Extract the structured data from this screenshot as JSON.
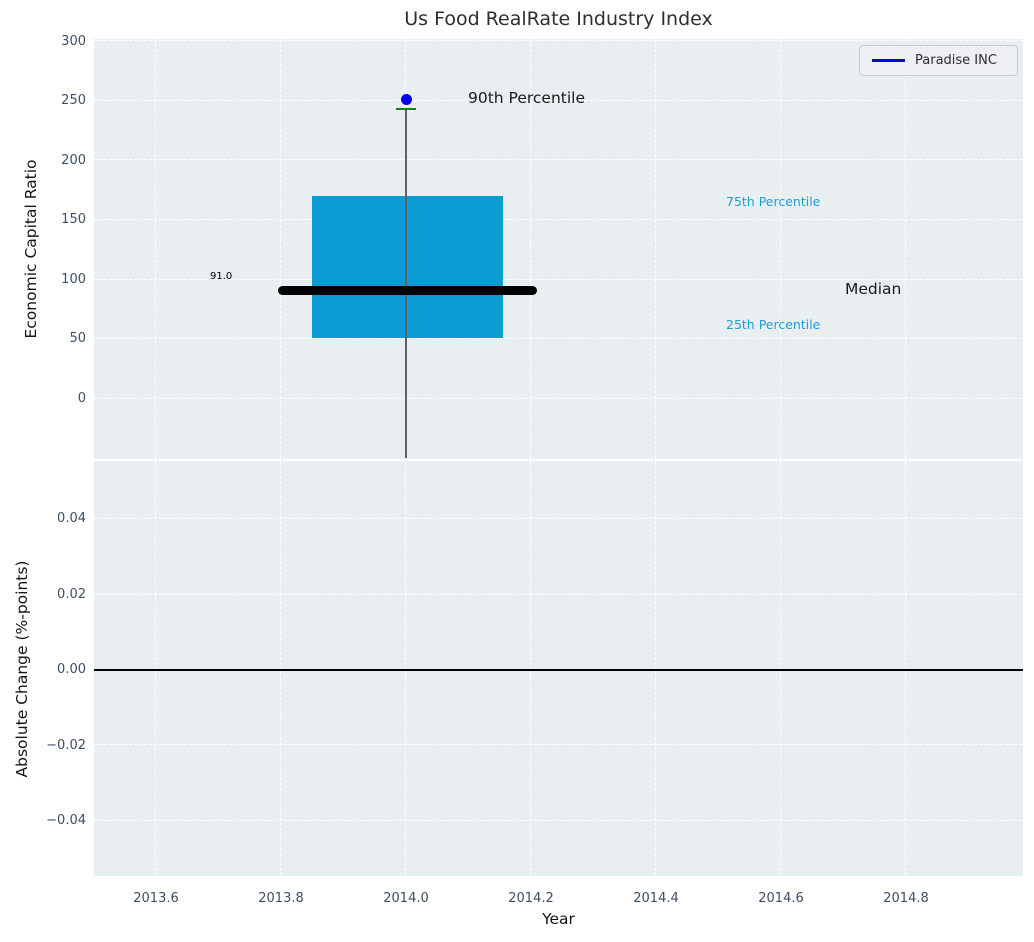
{
  "chart_data": [
    {
      "type": "boxplot",
      "title": "Us Food RealRate Industry Index",
      "ylabel": "Economic Capital Ratio",
      "legend_label": "Paradise INC",
      "legend_position": "upper right",
      "grid": true,
      "xlim": [
        2013.5,
        2014.99
      ],
      "ylim": [
        -50,
        302
      ],
      "yticks": [
        {
          "v": 300,
          "label": "300"
        },
        {
          "v": 250,
          "label": "250"
        },
        {
          "v": 200,
          "label": "200"
        },
        {
          "v": 150,
          "label": "150"
        },
        {
          "v": 100,
          "label": "100"
        },
        {
          "v": 50,
          "label": "50"
        },
        {
          "v": 0,
          "label": "0"
        }
      ],
      "box": {
        "x_center": 2014.0,
        "x_left": 2013.85,
        "x_right": 2014.155,
        "p25": 51,
        "median": 91.0,
        "p75": 170,
        "p90": 243,
        "median_x_left": 2013.795,
        "median_x_right": 2014.21,
        "whisker_low": "extends below visible axis range"
      },
      "company_point": {
        "name": "Paradise INC",
        "x": 2014.0,
        "y": 251
      },
      "labels": {
        "p90": "90th Percentile",
        "p75": "75th Percentile",
        "median": "Median",
        "p25": "25th Percentile",
        "median_value": "91.0"
      },
      "colors": {
        "box_fill": "#0a9cd2",
        "median_line": "#000000",
        "whisker": "#5f6368",
        "cap": "#0c860c",
        "point": "#0000ee",
        "percentile_text": "#1b9fd6",
        "annotation_text": "#1a1a1a",
        "axes_bg": "#e9eef0",
        "grid": "#ffffff",
        "tick_text": "#3d4f63",
        "title_text": "#2e2e2e",
        "legend_bg": "#edeff3",
        "legend_border": "#cccccc"
      }
    },
    {
      "type": "line",
      "ylabel": "Absolute Change (%-points)",
      "xlabel": "Year",
      "grid": true,
      "zero_line_y": 0.0,
      "ylim": [
        -0.055,
        0.055
      ],
      "yticks": [
        {
          "v": 0.04,
          "label": "0.04"
        },
        {
          "v": 0.02,
          "label": "0.02"
        },
        {
          "v": 0.0,
          "label": "0.00"
        },
        {
          "v": -0.02,
          "label": "−0.02"
        },
        {
          "v": -0.04,
          "label": "−0.04"
        }
      ],
      "xticks": [
        {
          "v": 2013.6,
          "label": "2013.6"
        },
        {
          "v": 2013.8,
          "label": "2013.8"
        },
        {
          "v": 2014.0,
          "label": "2014.0"
        },
        {
          "v": 2014.2,
          "label": "2014.2"
        },
        {
          "v": 2014.4,
          "label": "2014.4"
        },
        {
          "v": 2014.6,
          "label": "2014.6"
        },
        {
          "v": 2014.8,
          "label": "2014.8"
        }
      ],
      "colors": {
        "zero_line": "#000000"
      }
    }
  ]
}
